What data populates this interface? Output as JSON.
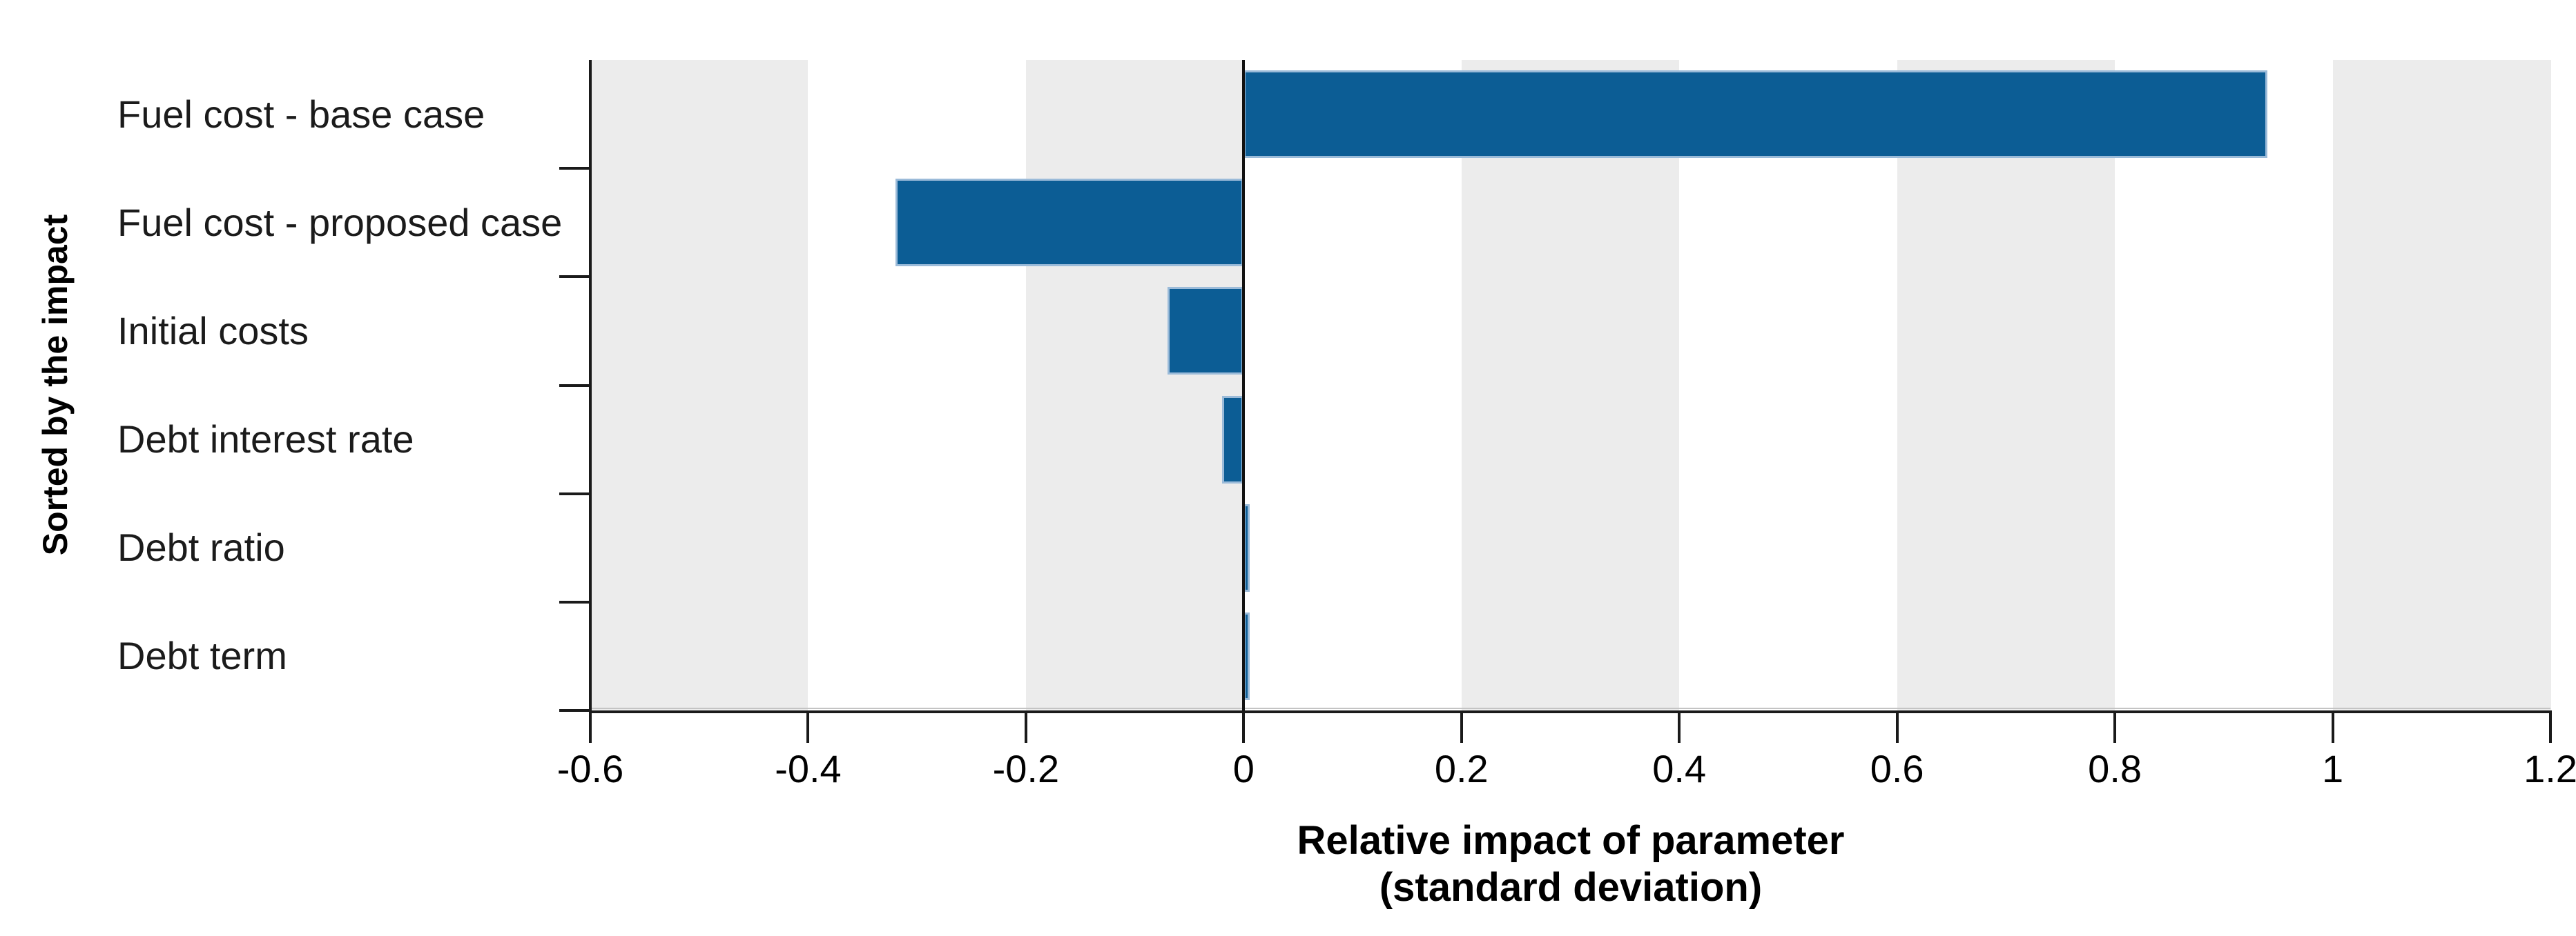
{
  "chart_data": {
    "type": "bar",
    "orientation": "horizontal",
    "title": "",
    "categories": [
      "Fuel cost - base case",
      "Fuel cost - proposed case",
      "Initial costs",
      "Debt interest rate",
      "Debt ratio",
      "Debt term"
    ],
    "values": [
      0.94,
      -0.32,
      -0.07,
      -0.02,
      0.005,
      0.005
    ],
    "series": [
      {
        "name": "Relative impact (standard deviation)",
        "values": [
          0.94,
          -0.32,
          -0.07,
          -0.02,
          0.005,
          0.005
        ]
      }
    ],
    "xlabel_line1": "Relative impact of parameter",
    "xlabel_line2": "(standard deviation)",
    "ylabel": "Sorted by the impact",
    "xlim": [
      -0.6,
      1.2
    ],
    "x_ticks": [
      -0.6,
      -0.4,
      -0.2,
      0,
      0.2,
      0.4,
      0.6,
      0.8,
      1,
      1.2
    ],
    "x_tick_labels": [
      "-0.6",
      "-0.4",
      "-0.2",
      "0",
      "0.2",
      "0.4",
      "0.6",
      "0.8",
      "1",
      "1.2"
    ],
    "legend_position": "none",
    "grid": "alternating-vertical-bands",
    "colors": {
      "bar_fill": "#0C5D95",
      "bar_border": "#9BBBD9",
      "band_gray": "#ECECEC",
      "band_white": "#FFFFFF",
      "axis": "#1A1A1A",
      "band_edge_line": "#C4C4C4"
    }
  }
}
